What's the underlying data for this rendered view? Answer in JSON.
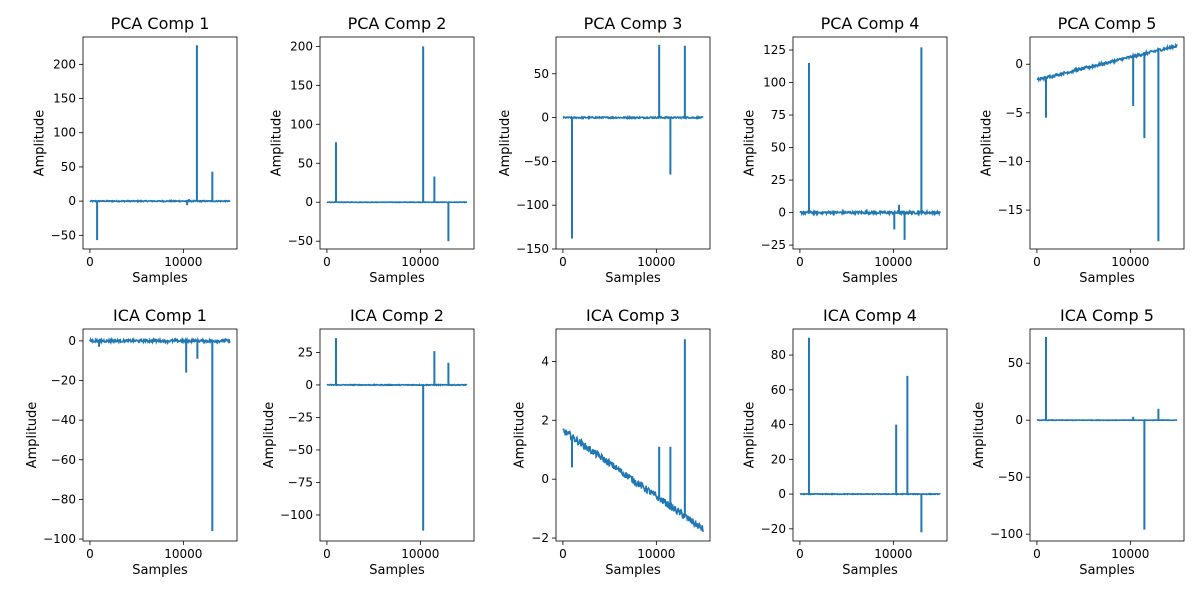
{
  "chart_data": [
    {
      "type": "line",
      "title": "PCA Comp 1",
      "xlabel": "Samples",
      "ylabel": "Amplitude",
      "xlim": [
        -740,
        15740
      ],
      "ylim": [
        -70,
        240
      ],
      "xticks": [
        0,
        10000
      ],
      "xtick_labels": [
        "0",
        "10000"
      ],
      "yticks": [
        -50,
        0,
        50,
        100,
        150,
        200
      ],
      "ytick_labels": [
        "−50",
        "0",
        "50",
        "100",
        "150",
        "200"
      ],
      "baseline": 0,
      "baseline_noise": 0.8,
      "trend": [
        0,
        0
      ],
      "spikes": [
        [
          770,
          -57
        ],
        [
          10400,
          -6
        ],
        [
          10600,
          3
        ],
        [
          11450,
          228
        ],
        [
          13100,
          43
        ]
      ],
      "color": "#1f77b4"
    },
    {
      "type": "line",
      "title": "PCA Comp 2",
      "xlabel": "Samples",
      "ylabel": "Amplitude",
      "xlim": [
        -740,
        15740
      ],
      "ylim": [
        -60,
        212
      ],
      "xticks": [
        0,
        10000
      ],
      "xtick_labels": [
        "0",
        "10000"
      ],
      "yticks": [
        -50,
        0,
        50,
        100,
        150,
        200
      ],
      "ytick_labels": [
        "−50",
        "0",
        "50",
        "100",
        "150",
        "200"
      ],
      "baseline": 0,
      "baseline_noise": 0.3,
      "trend": [
        0,
        0
      ],
      "spikes": [
        [
          970,
          77
        ],
        [
          10300,
          200
        ],
        [
          11500,
          33
        ],
        [
          13000,
          -50
        ]
      ],
      "color": "#1f77b4"
    },
    {
      "type": "line",
      "title": "PCA Comp 3",
      "xlabel": "Samples",
      "ylabel": "Amplitude",
      "xlim": [
        -740,
        15740
      ],
      "ylim": [
        -150,
        92
      ],
      "xticks": [
        0,
        10000
      ],
      "xtick_labels": [
        "0",
        "10000"
      ],
      "yticks": [
        -150,
        -100,
        -50,
        0,
        50
      ],
      "ytick_labels": [
        "−150",
        "−100",
        "−50",
        "0",
        "50"
      ],
      "baseline": 0,
      "baseline_noise": 0.8,
      "trend": [
        0,
        0
      ],
      "spikes": [
        [
          970,
          -138
        ],
        [
          10300,
          83
        ],
        [
          11500,
          -65
        ],
        [
          13050,
          82
        ]
      ],
      "color": "#1f77b4"
    },
    {
      "type": "line",
      "title": "PCA Comp 4",
      "xlabel": "Samples",
      "ylabel": "Amplitude",
      "xlim": [
        -740,
        15740
      ],
      "ylim": [
        -28,
        135
      ],
      "xticks": [
        0,
        10000
      ],
      "xtick_labels": [
        "0",
        "10000"
      ],
      "yticks": [
        -25,
        0,
        25,
        50,
        75,
        100,
        125
      ],
      "ytick_labels": [
        "−25",
        "0",
        "25",
        "50",
        "75",
        "100",
        "125"
      ],
      "baseline": 0,
      "baseline_noise": 1.0,
      "trend": [
        0,
        0
      ],
      "spikes": [
        [
          970,
          115
        ],
        [
          10100,
          -13
        ],
        [
          10600,
          6
        ],
        [
          11200,
          -21
        ],
        [
          13000,
          127
        ]
      ],
      "color": "#1f77b4"
    },
    {
      "type": "line",
      "title": "PCA Comp 5",
      "xlabel": "Samples",
      "ylabel": "Amplitude",
      "xlim": [
        -740,
        15740
      ],
      "ylim": [
        -19,
        2.8
      ],
      "xticks": [
        0,
        10000
      ],
      "xtick_labels": [
        "0",
        "10000"
      ],
      "yticks": [
        -15,
        -10,
        -5,
        0
      ],
      "ytick_labels": [
        "−15",
        "−10",
        "−5",
        "0"
      ],
      "baseline": 0,
      "baseline_noise": 0.15,
      "trend": [
        -1.6,
        1.9
      ],
      "spikes": [
        [
          970,
          -5.5
        ],
        [
          10300,
          -4.3
        ],
        [
          11500,
          -7.6
        ],
        [
          13000,
          -18.2
        ]
      ],
      "color": "#1f77b4"
    },
    {
      "type": "line",
      "title": "ICA Comp 1",
      "xlabel": "Samples",
      "ylabel": "Amplitude",
      "xlim": [
        -740,
        15740
      ],
      "ylim": [
        -101,
        6
      ],
      "xticks": [
        0,
        10000
      ],
      "xtick_labels": [
        "0",
        "10000"
      ],
      "yticks": [
        -100,
        -80,
        -60,
        -40,
        -20,
        0
      ],
      "ytick_labels": [
        "−100",
        "−80",
        "−60",
        "−40",
        "−20",
        "0"
      ],
      "baseline": 0,
      "baseline_noise": 0.7,
      "trend": [
        0,
        0
      ],
      "spikes": [
        [
          970,
          -3
        ],
        [
          10300,
          -16
        ],
        [
          11500,
          -9
        ],
        [
          13100,
          -96
        ]
      ],
      "color": "#1f77b4"
    },
    {
      "type": "line",
      "title": "ICA Comp 2",
      "xlabel": "Samples",
      "ylabel": "Amplitude",
      "xlim": [
        -740,
        15740
      ],
      "ylim": [
        -120,
        43
      ],
      "xticks": [
        0,
        10000
      ],
      "xtick_labels": [
        "0",
        "10000"
      ],
      "yticks": [
        -100,
        -75,
        -50,
        -25,
        0,
        25
      ],
      "ytick_labels": [
        "−100",
        "−75",
        "−50",
        "−25",
        "0",
        "25"
      ],
      "baseline": 0,
      "baseline_noise": 0.3,
      "trend": [
        0,
        0
      ],
      "spikes": [
        [
          970,
          36
        ],
        [
          10300,
          -112
        ],
        [
          11500,
          26
        ],
        [
          13000,
          17
        ]
      ],
      "color": "#1f77b4"
    },
    {
      "type": "line",
      "title": "ICA Comp 3",
      "xlabel": "Samples",
      "ylabel": "Amplitude",
      "xlim": [
        -740,
        15740
      ],
      "ylim": [
        -2.1,
        5.1
      ],
      "xticks": [
        0,
        10000
      ],
      "xtick_labels": [
        "0",
        "10000"
      ],
      "yticks": [
        -2,
        0,
        2,
        4
      ],
      "ytick_labels": [
        "−2",
        "0",
        "2",
        "4"
      ],
      "baseline": 0,
      "baseline_noise": 0.12,
      "trend": [
        1.65,
        -1.7
      ],
      "spikes": [
        [
          970,
          0.4
        ],
        [
          10300,
          1.1
        ],
        [
          11500,
          1.1
        ],
        [
          13050,
          4.75
        ]
      ],
      "color": "#1f77b4"
    },
    {
      "type": "line",
      "title": "ICA Comp 4",
      "xlabel": "Samples",
      "ylabel": "Amplitude",
      "xlim": [
        -740,
        15740
      ],
      "ylim": [
        -27,
        95
      ],
      "xticks": [
        0,
        10000
      ],
      "xtick_labels": [
        "0",
        "10000"
      ],
      "yticks": [
        -20,
        0,
        20,
        40,
        60,
        80
      ],
      "ytick_labels": [
        "−20",
        "0",
        "20",
        "40",
        "60",
        "80"
      ],
      "baseline": 0,
      "baseline_noise": 0.2,
      "trend": [
        0,
        0
      ],
      "spikes": [
        [
          970,
          90
        ],
        [
          10300,
          40
        ],
        [
          11500,
          68
        ],
        [
          13000,
          -22
        ]
      ],
      "color": "#1f77b4"
    },
    {
      "type": "line",
      "title": "ICA Comp 5",
      "xlabel": "Samples",
      "ylabel": "Amplitude",
      "xlim": [
        -740,
        15740
      ],
      "ylim": [
        -106,
        80
      ],
      "xticks": [
        0,
        10000
      ],
      "xtick_labels": [
        "0",
        "10000"
      ],
      "yticks": [
        -100,
        -50,
        0,
        50
      ],
      "ytick_labels": [
        "−100",
        "−50",
        "0",
        "50"
      ],
      "baseline": 0,
      "baseline_noise": 0.2,
      "trend": [
        0,
        0
      ],
      "spikes": [
        [
          970,
          73
        ],
        [
          10300,
          3
        ],
        [
          11500,
          -96
        ],
        [
          13000,
          10
        ]
      ],
      "color": "#1f77b4"
    }
  ]
}
